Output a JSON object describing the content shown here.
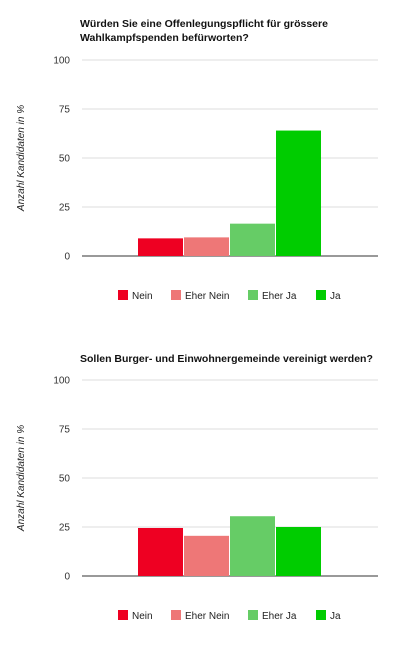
{
  "chart_data": [
    {
      "type": "bar",
      "title": "Würden Sie eine Offenlegungspflicht für grössere Wahlkampfspenden befürworten?",
      "xlabel": "",
      "ylabel": "Anzahl Kandidaten in %",
      "ylim": [
        0,
        100
      ],
      "yticks": [
        "0",
        "25",
        "50",
        "75",
        "100"
      ],
      "categories": [
        "Nein",
        "Eher Nein",
        "Eher Ja",
        "Ja"
      ],
      "values": [
        9,
        9.5,
        16.5,
        64
      ],
      "colors": [
        "#ee0022",
        "#ee7777",
        "#66cc66",
        "#00cc00"
      ],
      "grid": true,
      "legend_position": "bottom"
    },
    {
      "type": "bar",
      "title": "Sollen Burger- und Einwohnergemeinde vereinigt werden?",
      "xlabel": "",
      "ylabel": "Anzahl Kandidaten in %",
      "ylim": [
        0,
        100
      ],
      "yticks": [
        "0",
        "25",
        "50",
        "75",
        "100"
      ],
      "categories": [
        "Nein",
        "Eher Nein",
        "Eher Ja",
        "Ja"
      ],
      "values": [
        24.5,
        20.5,
        30.5,
        25
      ],
      "colors": [
        "#ee0022",
        "#ee7777",
        "#66cc66",
        "#00cc00"
      ],
      "grid": true,
      "legend_position": "bottom"
    }
  ]
}
